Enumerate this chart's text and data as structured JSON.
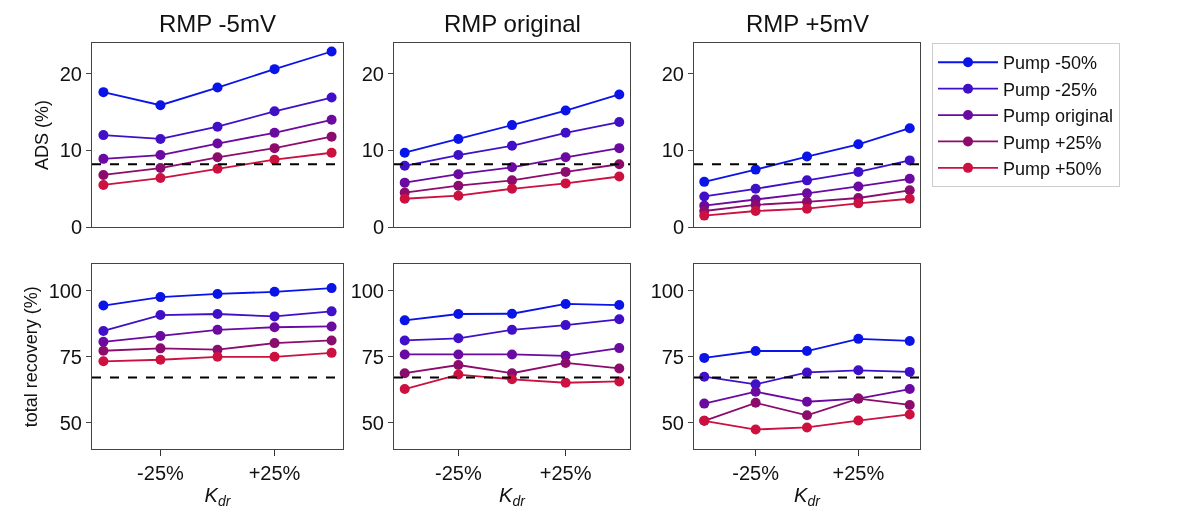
{
  "chart_data": [
    {
      "type": "line",
      "title": "RMP -5mV",
      "ylabel": "ADS (%)",
      "categories": [
        null,
        null,
        null,
        null,
        null
      ],
      "ylim": [
        0,
        24
      ],
      "yticks": [
        0,
        10,
        20
      ],
      "tick_labels": "y",
      "marker": "circle",
      "line_style": "solid",
      "legend": "right",
      "ref_lines": [
        {
          "axis": "y",
          "value": 8.2,
          "color": "#000000",
          "line_style": "dashed"
        }
      ],
      "series": [
        {
          "name": "Pump -50%",
          "color": "#0a14e6",
          "values": [
            17.6,
            15.9,
            18.2,
            20.6,
            22.9
          ]
        },
        {
          "name": "Pump -25%",
          "color": "#4010c8",
          "values": [
            12.0,
            11.5,
            13.1,
            15.1,
            16.9
          ]
        },
        {
          "name": "Pump original",
          "color": "#6a0aa0",
          "values": [
            8.9,
            9.4,
            10.9,
            12.3,
            14.0
          ]
        },
        {
          "name": "Pump +25%",
          "color": "#8c0c6e",
          "values": [
            6.8,
            7.7,
            9.1,
            10.3,
            11.8
          ]
        },
        {
          "name": "Pump +50%",
          "color": "#cc1040",
          "values": [
            5.5,
            6.4,
            7.6,
            8.8,
            9.7
          ]
        }
      ]
    },
    {
      "type": "line",
      "title": "RMP original",
      "categories": [
        null,
        null,
        null,
        null,
        null
      ],
      "ylim": [
        0,
        24
      ],
      "yticks": [
        0,
        10,
        20
      ],
      "tick_labels": "y",
      "marker": "circle",
      "line_style": "solid",
      "ref_lines": [
        {
          "axis": "y",
          "value": 8.2,
          "color": "#000000",
          "line_style": "dashed"
        }
      ],
      "series": [
        {
          "color": "#0a14e6",
          "values": [
            9.7,
            11.5,
            13.3,
            15.2,
            17.3
          ]
        },
        {
          "color": "#4010c8",
          "values": [
            8.0,
            9.4,
            10.6,
            12.3,
            13.7
          ]
        },
        {
          "color": "#6a0aa0",
          "values": [
            5.8,
            6.9,
            7.8,
            9.1,
            10.3
          ]
        },
        {
          "color": "#8c0c6e",
          "values": [
            4.5,
            5.4,
            6.1,
            7.2,
            8.2
          ]
        },
        {
          "color": "#cc1040",
          "values": [
            3.7,
            4.1,
            5.0,
            5.7,
            6.6
          ]
        }
      ]
    },
    {
      "type": "line",
      "title": "RMP +5mV",
      "categories": [
        null,
        null,
        null,
        null,
        null
      ],
      "ylim": [
        0,
        24
      ],
      "yticks": [
        0,
        10,
        20
      ],
      "tick_labels": "y",
      "marker": "circle",
      "line_style": "solid",
      "ref_lines": [
        {
          "axis": "y",
          "value": 8.2,
          "color": "#000000",
          "line_style": "dashed"
        }
      ],
      "series": [
        {
          "color": "#0a14e6",
          "values": [
            5.9,
            7.5,
            9.2,
            10.8,
            12.9
          ]
        },
        {
          "color": "#4010c8",
          "values": [
            4.0,
            5.0,
            6.1,
            7.2,
            8.7
          ]
        },
        {
          "color": "#6a0aa0",
          "values": [
            2.8,
            3.6,
            4.4,
            5.3,
            6.3
          ]
        },
        {
          "color": "#8c0c6e",
          "values": [
            2.1,
            2.9,
            3.3,
            3.8,
            4.8
          ]
        },
        {
          "color": "#cc1040",
          "values": [
            1.5,
            2.1,
            2.4,
            3.1,
            3.7
          ]
        }
      ]
    },
    {
      "type": "line",
      "ylabel": "total recovery (%)",
      "xlabel": "K$_{dr}$",
      "categories": [
        null,
        "-25%",
        null,
        "+25%",
        null
      ],
      "ylim": [
        40,
        110
      ],
      "yticks": [
        50,
        75,
        100
      ],
      "marker": "circle",
      "line_style": "solid",
      "ref_lines": [
        {
          "axis": "y",
          "value": 67.2,
          "color": "#000000",
          "line_style": "dashed"
        }
      ],
      "series": [
        {
          "color": "#0a14e6",
          "values": [
            94.4,
            97.6,
            98.8,
            99.6,
            101.0
          ]
        },
        {
          "color": "#4010c8",
          "values": [
            84.8,
            90.8,
            91.2,
            90.3,
            92.2
          ]
        },
        {
          "color": "#6a0aa0",
          "values": [
            80.7,
            82.9,
            85.2,
            86.2,
            86.5
          ]
        },
        {
          "color": "#8c0c6e",
          "values": [
            77.3,
            78.2,
            77.7,
            80.2,
            81.2
          ]
        },
        {
          "color": "#cc1040",
          "values": [
            73.3,
            73.9,
            75.0,
            75.0,
            76.5
          ]
        }
      ]
    },
    {
      "type": "line",
      "xlabel": "K$_{dr}$",
      "categories": [
        null,
        "-25%",
        null,
        "+25%",
        null
      ],
      "ylim": [
        40,
        110
      ],
      "yticks": [
        50,
        75,
        100
      ],
      "marker": "circle",
      "line_style": "solid",
      "ref_lines": [
        {
          "axis": "y",
          "value": 67.2,
          "color": "#000000",
          "line_style": "dashed"
        }
      ],
      "series": [
        {
          "color": "#0a14e6",
          "values": [
            88.8,
            91.2,
            91.3,
            95.0,
            94.6
          ]
        },
        {
          "color": "#4010c8",
          "values": [
            81.2,
            82.0,
            85.2,
            87.0,
            89.2
          ]
        },
        {
          "color": "#6a0aa0",
          "values": [
            75.9,
            75.9,
            75.9,
            75.4,
            78.3
          ]
        },
        {
          "color": "#8c0c6e",
          "values": [
            68.8,
            71.9,
            68.8,
            72.7,
            70.6
          ]
        },
        {
          "color": "#cc1040",
          "values": [
            62.8,
            68.3,
            66.5,
            65.2,
            65.7
          ]
        }
      ]
    },
    {
      "type": "line",
      "xlabel": "K$_{dr}$",
      "categories": [
        null,
        "-25%",
        null,
        "+25%",
        null
      ],
      "ylim": [
        40,
        110
      ],
      "yticks": [
        50,
        75,
        100
      ],
      "marker": "circle",
      "line_style": "solid",
      "ref_lines": [
        {
          "axis": "y",
          "value": 67.2,
          "color": "#000000",
          "line_style": "dashed"
        }
      ],
      "series": [
        {
          "color": "#0a14e6",
          "values": [
            74.6,
            77.2,
            77.2,
            81.8,
            81.0
          ]
        },
        {
          "color": "#4010c8",
          "values": [
            67.5,
            64.6,
            69.1,
            69.9,
            69.3
          ]
        },
        {
          "color": "#6a0aa0",
          "values": [
            57.3,
            61.8,
            58.0,
            59.2,
            62.8
          ]
        },
        {
          "color": "#8c0c6e",
          "values": [
            50.8,
            57.6,
            52.9,
            59.2,
            56.8
          ]
        },
        {
          "color": "#cc1040",
          "values": [
            50.8,
            47.5,
            48.3,
            50.9,
            53.2
          ]
        }
      ]
    }
  ]
}
